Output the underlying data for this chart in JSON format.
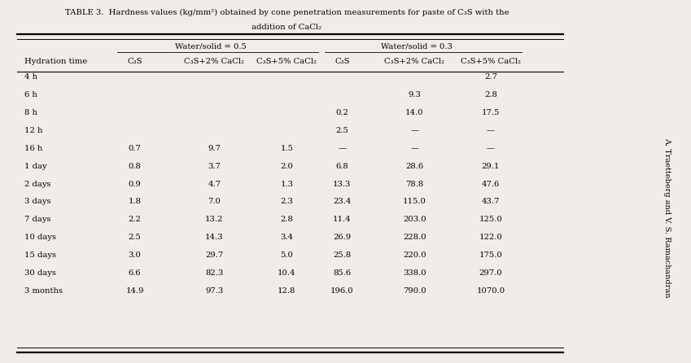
{
  "title_line1": "TABLE 3.  Hardness values (kg/mm²) obtained by cone penetration measurements for paste of C₃S with the",
  "title_line2": "addition of CaCl₂",
  "ws05_label": "Water/solid = 0.5",
  "ws03_label": "Water/solid = 0.3",
  "col_header": [
    "Hydration time",
    "C₃S",
    "C₃S+2% CaCl₂",
    "C₃S+5% CaCl₂",
    "C₃S",
    "C₃S+2% CaCl₂",
    "C₃S+5% CaCl₂"
  ],
  "rows": [
    [
      "4 h",
      "",
      "",
      "",
      "",
      "",
      "2.7"
    ],
    [
      "6 h",
      "",
      "",
      "",
      "",
      "9.3",
      "2.8"
    ],
    [
      "8 h",
      "",
      "",
      "",
      "0.2",
      "14.0",
      "17.5"
    ],
    [
      "12 h",
      "",
      "",
      "",
      "2.5",
      "—",
      "—"
    ],
    [
      "16 h",
      "0.7",
      "9.7",
      "1.5",
      "—",
      "—",
      "—"
    ],
    [
      "1 day",
      "0.8",
      "3.7",
      "2.0",
      "6.8",
      "28.6",
      "29.1"
    ],
    [
      "2 days",
      "0.9",
      "4.7",
      "1.3",
      "13.3",
      "78.8",
      "47.6"
    ],
    [
      "3 days",
      "1.8",
      "7.0",
      "2.3",
      "23.4",
      "115.0",
      "43.7"
    ],
    [
      "7 days",
      "2.2",
      "13.2",
      "2.8",
      "11.4",
      "203.0",
      "125.0"
    ],
    [
      "10 days",
      "2.5",
      "14.3",
      "3.4",
      "26.9",
      "228.0",
      "122.0"
    ],
    [
      "15 days",
      "3.0",
      "29.7",
      "5.0",
      "25.8",
      "220.0",
      "175.0"
    ],
    [
      "30 days",
      "6.6",
      "82.3",
      "10.4",
      "85.6",
      "338.0",
      "297.0"
    ],
    [
      "3 months",
      "14.9",
      "97.3",
      "12.8",
      "196.0",
      "790.0",
      "1070.0"
    ]
  ],
  "side_text": "A. Traetteberg and V. S. Ramachandran",
  "bg_color": "#f0ede8",
  "text_color": "#000000"
}
